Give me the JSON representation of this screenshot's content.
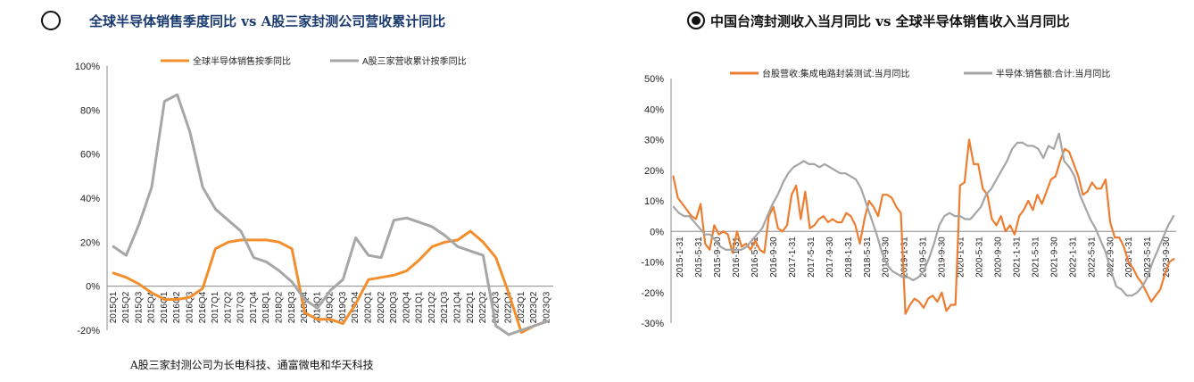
{
  "left": {
    "title": "全球半导体销售季度同比 vs A股三家封测公司营收累计同比",
    "footnote": "A股三家封测公司为长电科技、通富微电和华天科技"
  },
  "right": {
    "title": "中国台湾封测收入当月同比 vs 全球半导体销售收入当月同比"
  },
  "chart_data": [
    {
      "type": "line",
      "categories": [
        "2015Q1",
        "2015Q2",
        "2015Q3",
        "2015Q4",
        "2016Q1",
        "2016Q2",
        "2016Q3",
        "2016Q4",
        "2017Q1",
        "2017Q2",
        "2017Q3",
        "2017Q4",
        "2018Q1",
        "2018Q2",
        "2018Q3",
        "2018Q4",
        "2019Q1",
        "2019Q2",
        "2019Q3",
        "2019Q4",
        "2020Q1",
        "2020Q2",
        "2020Q3",
        "2020Q4",
        "2021Q1",
        "2021Q2",
        "2021Q3",
        "2021Q4",
        "2022Q1",
        "2022Q2",
        "2022Q3",
        "2022Q4",
        "2023Q1",
        "2023Q2",
        "2023Q3"
      ],
      "series": [
        {
          "name": "全球半导体销售按季同比",
          "color": "#f28e2b",
          "values": [
            6,
            4,
            1,
            -3,
            -6,
            -6,
            -5,
            -1,
            17,
            20,
            21,
            21,
            21,
            20,
            17,
            -12,
            -15,
            -15,
            -17,
            -8,
            3,
            4,
            5,
            7,
            12,
            18,
            20,
            21,
            25,
            20,
            13,
            -3,
            -21,
            -18,
            -16
          ]
        },
        {
          "name": "A股三家营收累计按季同比",
          "color": "#a6a6a6",
          "values": [
            18,
            14,
            28,
            45,
            84,
            87,
            70,
            45,
            35,
            30,
            25,
            13,
            11,
            7,
            2,
            -6,
            -10,
            -2,
            3,
            22,
            14,
            13,
            30,
            31,
            29,
            27,
            23,
            18,
            16,
            14,
            -18,
            -22,
            -20,
            -18,
            -16
          ]
        }
      ],
      "ylim": [
        -20,
        100
      ],
      "yticks": [
        "100%",
        "80%",
        "60%",
        "40%",
        "20%",
        "0%",
        "-20%"
      ],
      "legend": "top"
    },
    {
      "type": "line",
      "x_labels": [
        "2015-1-31",
        "2015-5-31",
        "2015-9-30",
        "2016-1-31",
        "2016-5-31",
        "2016-9-30",
        "2017-1-31",
        "2017-5-31",
        "2017-9-30",
        "2018-1-31",
        "2018-5-31",
        "2018-9-30",
        "2019-1-31",
        "2019-5-31",
        "2019-9-30",
        "2020-1-31",
        "2020-5-31",
        "2020-9-30",
        "2021-1-31",
        "2021-5-31",
        "2021-9-30",
        "2022-1-31",
        "2022-5-31",
        "2022-9-30",
        "2023-1-31",
        "2023-5-31",
        "2023-9-30"
      ],
      "series": [
        {
          "name": "台股营收:集成电路封装测试:当月同比",
          "color": "#ed7d31",
          "values": [
            18,
            11,
            9,
            7,
            5,
            4,
            9,
            -4,
            -6,
            2,
            -1,
            0,
            -1,
            -7,
            0,
            -5,
            -4,
            -6,
            -3,
            -6,
            -7,
            5,
            8,
            1,
            0,
            2,
            12,
            15,
            4,
            13,
            1,
            2,
            4,
            5,
            3,
            4,
            3,
            3,
            6,
            5,
            2,
            -4,
            4,
            10,
            8,
            5,
            12,
            12,
            11,
            8,
            6,
            -27,
            -24,
            -22,
            -23,
            -25,
            -22,
            -21,
            -23,
            -20,
            -26,
            -24,
            -24,
            15,
            16,
            30,
            22,
            22,
            14,
            12,
            4,
            2,
            5,
            0,
            2,
            -1,
            5,
            7,
            10,
            7,
            12,
            9,
            13,
            17,
            18,
            23,
            27,
            26,
            22,
            18,
            12,
            13,
            16,
            14,
            14,
            17,
            3,
            -2,
            -2,
            -5,
            -10,
            -12,
            -15,
            -17,
            -20,
            -23,
            -21,
            -19,
            -14,
            -10,
            -9
          ]
        },
        {
          "name": "半导体:销售额:合计:当月同比",
          "color": "#a5a5a5",
          "values": [
            8,
            6,
            5,
            5,
            3,
            1,
            -1,
            -1,
            -3,
            -5,
            -6,
            -6,
            -6,
            -6,
            -5,
            -3,
            -1,
            1,
            5,
            9,
            12,
            16,
            19,
            21,
            22,
            23,
            22,
            22,
            21,
            22,
            21,
            20,
            19,
            19,
            18,
            17,
            14,
            9,
            4,
            -1,
            -7,
            -11,
            -13,
            -14,
            -15,
            -15,
            -16,
            -15,
            -13,
            -9,
            -4,
            2,
            5,
            6,
            5,
            5,
            4,
            4,
            6,
            8,
            12,
            14,
            17,
            20,
            23,
            27,
            29,
            29,
            28,
            28,
            27,
            24,
            28,
            27,
            32,
            23,
            21,
            18,
            12,
            8,
            4,
            1,
            -3,
            -7,
            -13,
            -18,
            -19,
            -21,
            -21,
            -20,
            -18,
            -15,
            -10,
            -6,
            -2,
            2,
            5
          ]
        }
      ],
      "ylim": [
        -30,
        50
      ],
      "yticks": [
        "50%",
        "40%",
        "30%",
        "20%",
        "10%",
        "0%",
        "-10%",
        "-20%",
        "-30%"
      ],
      "legend": "top"
    }
  ]
}
